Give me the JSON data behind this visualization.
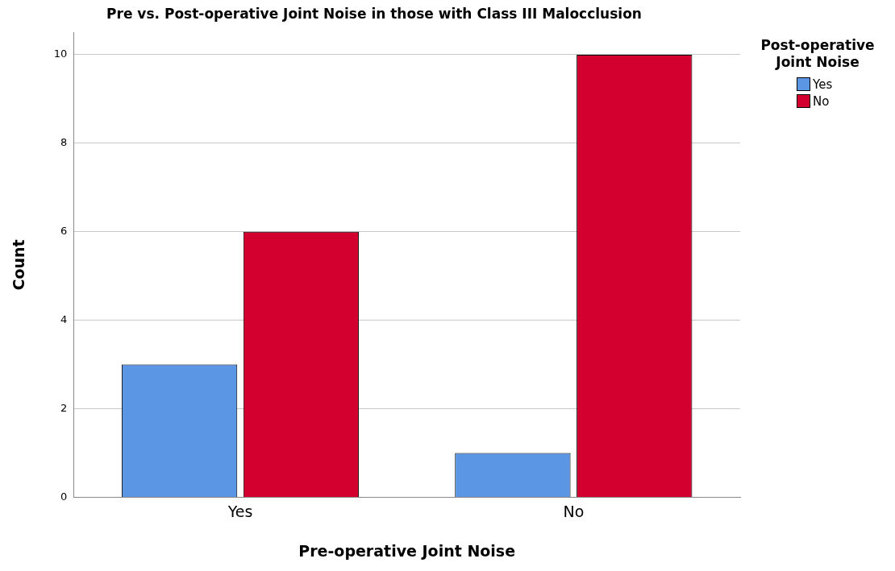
{
  "chart_data": {
    "type": "bar",
    "title": "Pre vs. Post-operative Joint Noise in those with Class III Malocclusion",
    "xlabel": "Pre-operative Joint Noise",
    "ylabel": "Count",
    "legend_title": "Post-operative Joint Noise",
    "categories": [
      "Yes",
      "No"
    ],
    "series": [
      {
        "name": "Yes",
        "color": "#5a96e3",
        "values": [
          3,
          1
        ]
      },
      {
        "name": "No",
        "color": "#d3002f",
        "values": [
          6,
          10
        ]
      }
    ],
    "ylim": [
      0,
      10.5
    ],
    "yticks": [
      0,
      2,
      4,
      6,
      8,
      10
    ],
    "grid": "y",
    "legend": "top right"
  }
}
